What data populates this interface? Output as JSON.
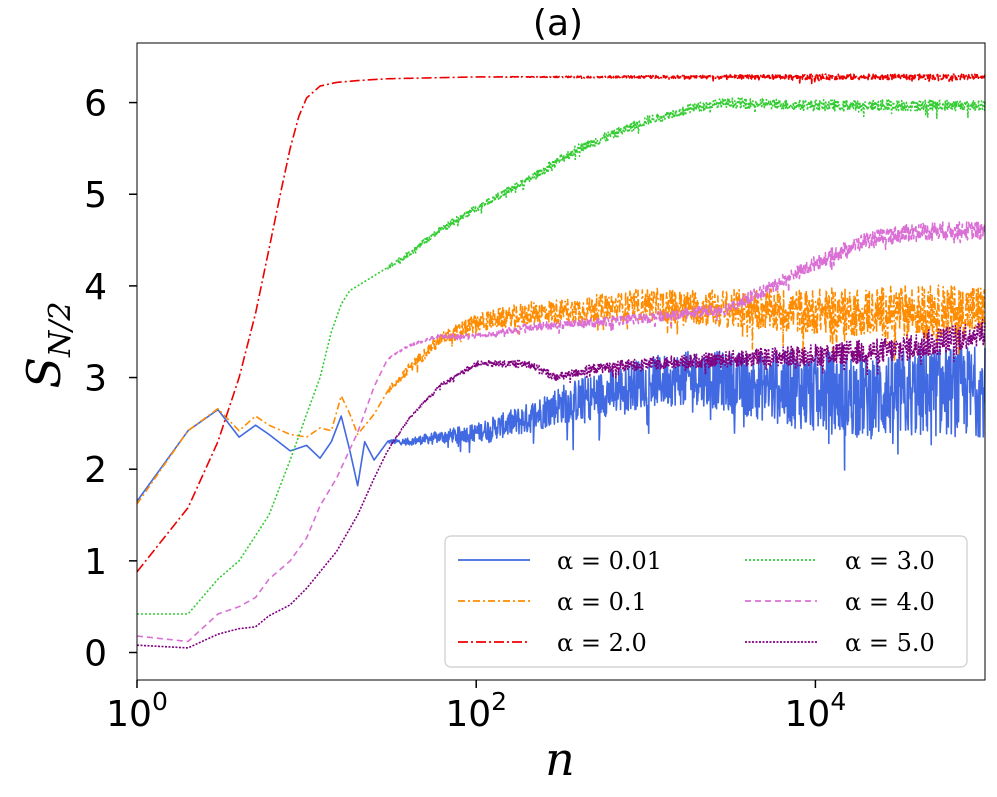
{
  "chart_data": {
    "type": "line",
    "title": "(a)",
    "xlabel": "n",
    "ylabel_main": "S",
    "ylabel_sub": "N/2",
    "x_scale": "log",
    "xlim": [
      1,
      100000
    ],
    "ylim": [
      -0.3,
      6.65
    ],
    "x_ticks": [
      {
        "value": 1,
        "base": "10",
        "exp": "0"
      },
      {
        "value": 100,
        "base": "10",
        "exp": "2"
      },
      {
        "value": 10000,
        "base": "10",
        "exp": "4"
      }
    ],
    "y_ticks": [
      {
        "value": 0,
        "label": "0"
      },
      {
        "value": 1,
        "label": "1"
      },
      {
        "value": 2,
        "label": "2"
      },
      {
        "value": 3,
        "label": "3"
      },
      {
        "value": 4,
        "label": "4"
      },
      {
        "value": 5,
        "label": "5"
      },
      {
        "value": 6,
        "label": "6"
      }
    ],
    "legend_position": "lower-right",
    "series": [
      {
        "name": "α = 0.01",
        "color": "#4169e1",
        "dash": "solid",
        "fluct": [
          0.0,
          0.0,
          0.0,
          0.1,
          0.25,
          0.3,
          0.45,
          0.5
        ],
        "values": [
          [
            1,
            1.65
          ],
          [
            2,
            2.42
          ],
          [
            3,
            2.65
          ],
          [
            4,
            2.35
          ],
          [
            5,
            2.48
          ],
          [
            6,
            2.38
          ],
          [
            8,
            2.2
          ],
          [
            10,
            2.26
          ],
          [
            12,
            2.12
          ],
          [
            14,
            2.3
          ],
          [
            16,
            2.58
          ],
          [
            18,
            2.2
          ],
          [
            20,
            1.82
          ],
          [
            22,
            2.3
          ],
          [
            25,
            2.1
          ],
          [
            30,
            2.3
          ],
          [
            40,
            2.3
          ],
          [
            60,
            2.35
          ],
          [
            100,
            2.4
          ],
          [
            200,
            2.55
          ],
          [
            300,
            2.7
          ],
          [
            500,
            2.8
          ],
          [
            1000,
            2.95
          ],
          [
            2000,
            3.0
          ],
          [
            5000,
            2.9
          ],
          [
            10000,
            2.85
          ],
          [
            20000,
            2.8
          ],
          [
            50000,
            2.85
          ],
          [
            100000,
            2.85
          ]
        ]
      },
      {
        "name": "α = 0.1",
        "color": "#ff8c00",
        "dash": "7,3,2,3",
        "fluct": [
          0.0,
          0.0,
          0.02,
          0.1,
          0.15,
          0.2,
          0.25,
          0.3
        ],
        "values": [
          [
            1,
            1.62
          ],
          [
            2,
            2.42
          ],
          [
            3,
            2.66
          ],
          [
            4,
            2.42
          ],
          [
            5,
            2.58
          ],
          [
            6,
            2.48
          ],
          [
            8,
            2.38
          ],
          [
            10,
            2.35
          ],
          [
            12,
            2.45
          ],
          [
            14,
            2.42
          ],
          [
            16,
            2.8
          ],
          [
            18,
            2.6
          ],
          [
            20,
            2.38
          ],
          [
            25,
            2.6
          ],
          [
            30,
            2.85
          ],
          [
            40,
            3.1
          ],
          [
            60,
            3.4
          ],
          [
            100,
            3.6
          ],
          [
            200,
            3.7
          ],
          [
            500,
            3.75
          ],
          [
            1000,
            3.8
          ],
          [
            3000,
            3.75
          ],
          [
            10000,
            3.72
          ],
          [
            100000,
            3.72
          ]
        ]
      },
      {
        "name": "α = 2.0",
        "color": "#ee0000",
        "dash": "10,3,2,3",
        "fluct": [
          0.0,
          0.0,
          0.0,
          0.0,
          0.01,
          0.02,
          0.03,
          0.03
        ],
        "values": [
          [
            1,
            0.88
          ],
          [
            2,
            1.58
          ],
          [
            3,
            2.3
          ],
          [
            4,
            3.0
          ],
          [
            5,
            3.7
          ],
          [
            6,
            4.4
          ],
          [
            7,
            5.0
          ],
          [
            8,
            5.5
          ],
          [
            9,
            5.85
          ],
          [
            10,
            6.05
          ],
          [
            12,
            6.18
          ],
          [
            15,
            6.22
          ],
          [
            20,
            6.24
          ],
          [
            30,
            6.26
          ],
          [
            100,
            6.28
          ],
          [
            1000,
            6.28
          ],
          [
            100000,
            6.28
          ]
        ]
      },
      {
        "name": "α = 3.0",
        "color": "#33cc33",
        "dash": "2,2",
        "fluct": [
          0.0,
          0.0,
          0.02,
          0.04,
          0.05,
          0.05,
          0.06,
          0.06
        ],
        "values": [
          [
            1,
            0.42
          ],
          [
            2,
            0.42
          ],
          [
            3,
            0.8
          ],
          [
            4,
            1.0
          ],
          [
            6,
            1.5
          ],
          [
            8,
            2.1
          ],
          [
            10,
            2.6
          ],
          [
            12,
            3.0
          ],
          [
            14,
            3.5
          ],
          [
            16,
            3.8
          ],
          [
            18,
            3.95
          ],
          [
            20,
            4.0
          ],
          [
            30,
            4.2
          ],
          [
            40,
            4.35
          ],
          [
            60,
            4.6
          ],
          [
            100,
            4.85
          ],
          [
            200,
            5.15
          ],
          [
            400,
            5.5
          ],
          [
            1000,
            5.8
          ],
          [
            2000,
            5.95
          ],
          [
            3000,
            6.0
          ],
          [
            10000,
            5.97
          ],
          [
            100000,
            5.97
          ]
        ]
      },
      {
        "name": "α = 4.0",
        "color": "#da70d6",
        "dash": "6,4",
        "fluct": [
          0.0,
          0.0,
          0.0,
          0.03,
          0.05,
          0.06,
          0.08,
          0.1
        ],
        "values": [
          [
            1,
            0.18
          ],
          [
            2,
            0.12
          ],
          [
            3,
            0.42
          ],
          [
            4,
            0.5
          ],
          [
            5,
            0.6
          ],
          [
            6,
            0.8
          ],
          [
            8,
            1.0
          ],
          [
            10,
            1.25
          ],
          [
            12,
            1.6
          ],
          [
            15,
            1.9
          ],
          [
            20,
            2.4
          ],
          [
            25,
            2.9
          ],
          [
            30,
            3.2
          ],
          [
            40,
            3.35
          ],
          [
            60,
            3.45
          ],
          [
            100,
            3.45
          ],
          [
            200,
            3.55
          ],
          [
            500,
            3.6
          ],
          [
            1000,
            3.65
          ],
          [
            3000,
            3.75
          ],
          [
            5000,
            3.95
          ],
          [
            10000,
            4.25
          ],
          [
            20000,
            4.5
          ],
          [
            40000,
            4.6
          ],
          [
            100000,
            4.6
          ]
        ]
      },
      {
        "name": "α = 5.0",
        "color": "#800080",
        "dash": "2,1.5",
        "fluct": [
          0.0,
          0.0,
          0.0,
          0.03,
          0.05,
          0.08,
          0.12,
          0.15
        ],
        "values": [
          [
            1,
            0.08
          ],
          [
            2,
            0.05
          ],
          [
            3,
            0.2
          ],
          [
            4,
            0.26
          ],
          [
            5,
            0.28
          ],
          [
            6,
            0.4
          ],
          [
            8,
            0.52
          ],
          [
            10,
            0.7
          ],
          [
            12,
            0.88
          ],
          [
            15,
            1.1
          ],
          [
            20,
            1.5
          ],
          [
            25,
            1.9
          ],
          [
            30,
            2.2
          ],
          [
            40,
            2.55
          ],
          [
            60,
            2.9
          ],
          [
            100,
            3.15
          ],
          [
            200,
            3.15
          ],
          [
            300,
            3.0
          ],
          [
            500,
            3.1
          ],
          [
            1000,
            3.15
          ],
          [
            3000,
            3.2
          ],
          [
            10000,
            3.25
          ],
          [
            30000,
            3.3
          ],
          [
            100000,
            3.5
          ]
        ]
      }
    ]
  }
}
